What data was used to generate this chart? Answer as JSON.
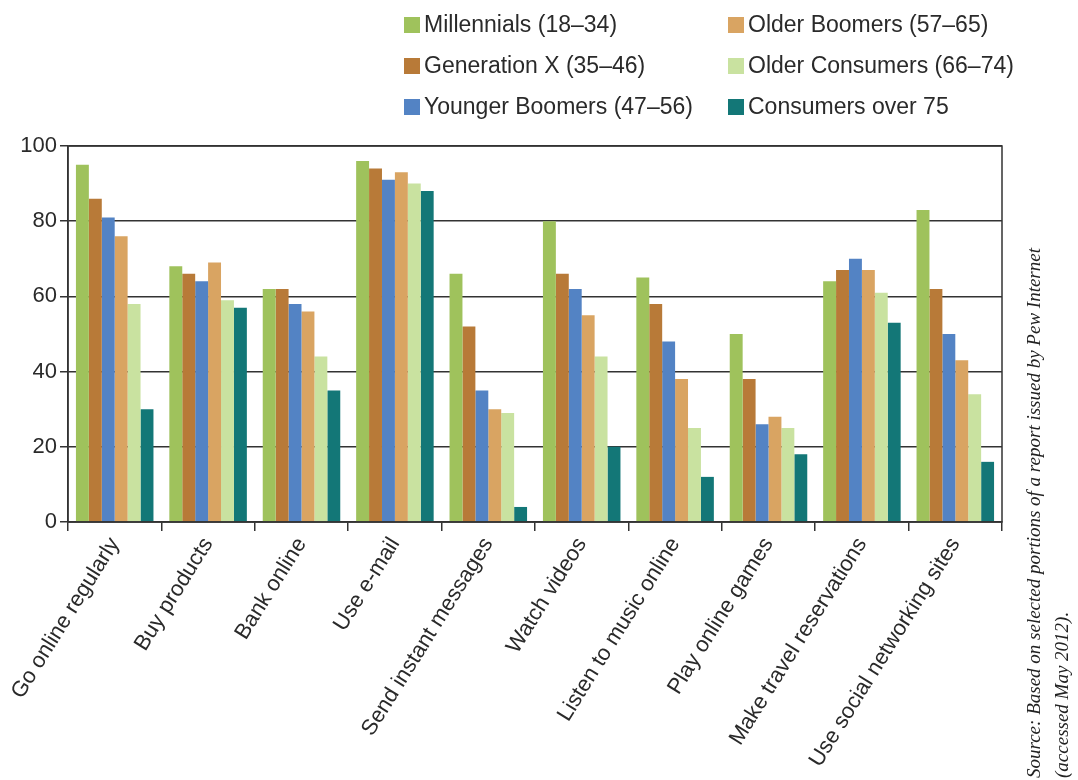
{
  "chart_data": {
    "type": "bar",
    "categories": [
      "Go online regularly",
      "Buy products",
      "Bank online",
      "Use e-mail",
      "Send instant messages",
      "Watch videos",
      "Listen to music online",
      "Play online games",
      "Make travel reservations",
      "Use social networking sites"
    ],
    "series": [
      {
        "name": "Millennials (18–34)",
        "color": "#9fc25c",
        "values": [
          95,
          68,
          62,
          96,
          66,
          80,
          65,
          50,
          64,
          83
        ]
      },
      {
        "name": "Generation X (35–46)",
        "color": "#b87a38",
        "values": [
          86,
          66,
          62,
          94,
          52,
          66,
          58,
          38,
          67,
          62
        ]
      },
      {
        "name": "Younger Boomers (47–56)",
        "color": "#5383c4",
        "values": [
          81,
          64,
          58,
          91,
          35,
          62,
          48,
          26,
          70,
          50
        ]
      },
      {
        "name": "Older Boomers (57–65)",
        "color": "#d9a462",
        "values": [
          76,
          69,
          56,
          93,
          30,
          55,
          38,
          28,
          67,
          43
        ]
      },
      {
        "name": "Older Consumers (66–74)",
        "color": "#c9e2a0",
        "values": [
          58,
          59,
          44,
          90,
          29,
          44,
          25,
          25,
          61,
          34
        ]
      },
      {
        "name": "Consumers over 75",
        "color": "#137777",
        "values": [
          30,
          57,
          35,
          88,
          4,
          20,
          12,
          18,
          53,
          16
        ]
      }
    ],
    "ylim": [
      0,
      100
    ],
    "yticks": [
      0,
      20,
      40,
      60,
      80,
      100
    ],
    "grid": "y",
    "legend": "top right",
    "annotations": [
      "Source: Based on selected portions of a report issued by Pew Internet (accessed May 2012)."
    ]
  }
}
